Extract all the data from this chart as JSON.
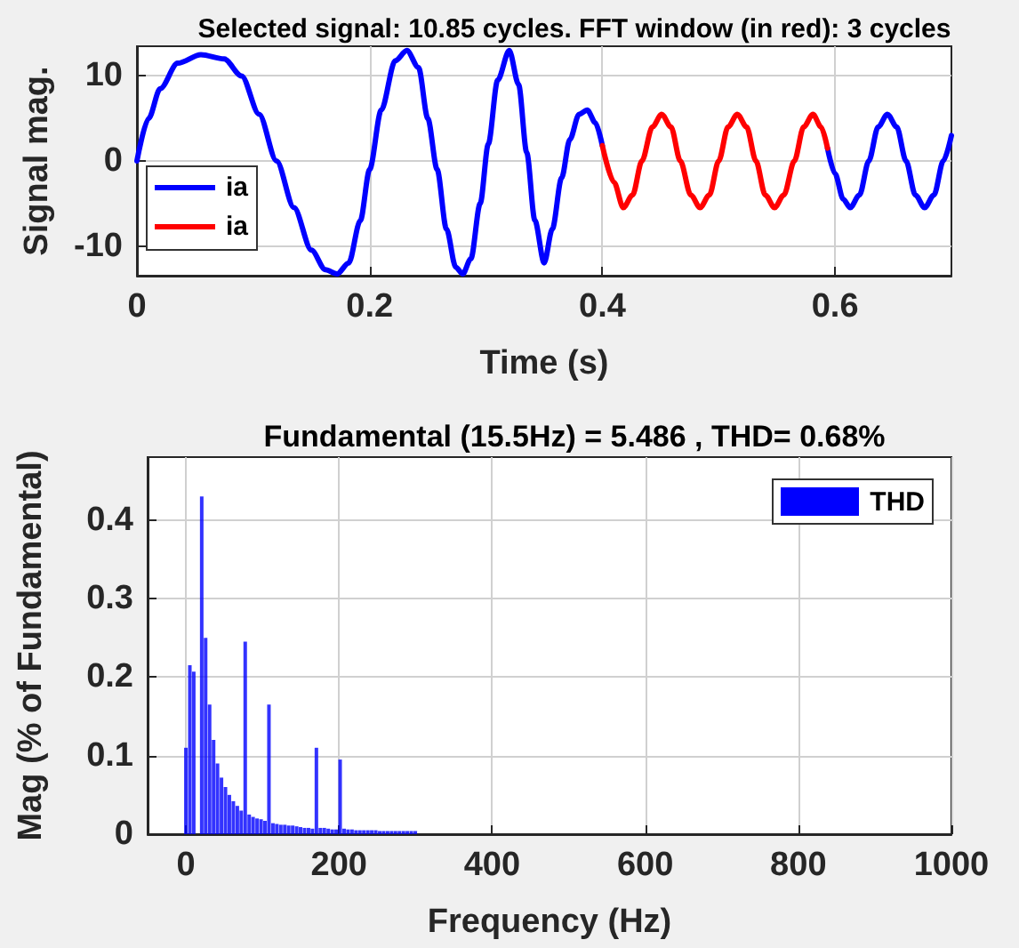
{
  "chart_data": [
    {
      "type": "line",
      "title": "Selected signal: 10.85 cycles. FFT window (in red): 3 cycles",
      "xlabel": "Time (s)",
      "ylabel": "Signal mag.",
      "xlim": [
        0,
        0.7
      ],
      "xticks": [
        0,
        0.2,
        0.4,
        0.6
      ],
      "ylim": [
        -13.5,
        13.5
      ],
      "yticks": [
        -10,
        0,
        10
      ],
      "grid": true,
      "legend": "left",
      "marker": "none",
      "line_style": "solid",
      "series": [
        {
          "name": "ia",
          "color": "#0000ff",
          "x": [
            0,
            0.01,
            0.02,
            0.035,
            0.055,
            0.075,
            0.09,
            0.105,
            0.12,
            0.135,
            0.15,
            0.162,
            0.172,
            0.182,
            0.192,
            0.2,
            0.21,
            0.222,
            0.232,
            0.242,
            0.25,
            0.258,
            0.266,
            0.274,
            0.28,
            0.287,
            0.295,
            0.302,
            0.31,
            0.32,
            0.328,
            0.335,
            0.342,
            0.35,
            0.357,
            0.365,
            0.372,
            0.38,
            0.387,
            0.394,
            0.4,
            0.5,
            0.5935,
            0.6,
            0.607,
            0.613,
            0.621,
            0.629,
            0.637,
            0.645,
            0.653,
            0.661,
            0.669,
            0.677,
            0.685,
            0.693,
            0.7
          ],
          "values": [
            0,
            5,
            8.5,
            11.5,
            12.5,
            12,
            10,
            5.5,
            0,
            -5.5,
            -10.5,
            -12.8,
            -13.3,
            -12,
            -7,
            -1,
            6,
            11.8,
            13,
            11,
            5,
            -1,
            -8,
            -12.5,
            -13.3,
            -11.5,
            -5,
            2,
            9.5,
            13,
            9,
            1,
            -7,
            -12,
            -8,
            -2,
            2.5,
            5.5,
            6,
            4.5,
            1.8,
            null,
            1.5,
            -1.5,
            -4.5,
            -5.5,
            -4,
            0,
            4,
            5.5,
            4,
            0,
            -4,
            -5.5,
            -4,
            0,
            3
          ]
        },
        {
          "name": "ia",
          "color": "#ff0000",
          "x": [
            0.4,
            0.41,
            0.418,
            0.426,
            0.434,
            0.443,
            0.451,
            0.459,
            0.467,
            0.476,
            0.484,
            0.492,
            0.5,
            0.508,
            0.516,
            0.524,
            0.532,
            0.54,
            0.548,
            0.556,
            0.565,
            0.573,
            0.581,
            0.588,
            0.5935
          ],
          "values": [
            1.8,
            -2.5,
            -5.5,
            -4,
            0,
            4,
            5.5,
            4,
            0,
            -4,
            -5.5,
            -4,
            0,
            4,
            5.5,
            4,
            0,
            -4,
            -5.5,
            -4,
            0,
            4,
            5.5,
            4,
            1.5
          ]
        }
      ]
    },
    {
      "type": "bar",
      "title": "Fundamental (15.5Hz) = 5.486 , THD= 0.68%",
      "xlabel": "Frequency (Hz)",
      "ylabel": "Mag (% of Fundamental)",
      "xlim": [
        -50,
        1000
      ],
      "xticks": [
        0,
        200,
        400,
        600,
        800,
        1000
      ],
      "ylim": [
        0,
        0.48
      ],
      "yticks": [
        0,
        0.1,
        0.2,
        0.3,
        0.4
      ],
      "grid": true,
      "legend": "top right",
      "series": [
        {
          "name": "THD",
          "color": "#0000ff",
          "x": [
            0,
            5.2,
            10.3,
            15.5,
            20.7,
            25.8,
            31,
            36.2,
            41.3,
            46.5,
            51.7,
            56.8,
            62,
            67.2,
            72.3,
            77.5,
            82.7,
            87.8,
            93,
            98.2,
            103.3,
            108.5,
            113.7,
            118.8,
            124,
            129.2,
            134.3,
            139.5,
            144.7,
            149.8,
            155,
            160.2,
            165.3,
            170.5,
            175.7,
            180.8,
            186,
            191.2,
            196.3,
            201.5,
            206.7,
            211.8,
            217,
            222.2,
            227.3,
            232.5,
            237.7,
            242.8,
            248,
            253.2,
            258.3,
            263.5,
            268.7,
            273.8,
            279,
            284.2,
            289.3,
            294.5,
            299.7
          ],
          "values": [
            0.11,
            0.215,
            0.207,
            null,
            0.43,
            0.25,
            0.165,
            0.12,
            0.09,
            0.072,
            0.06,
            0.05,
            0.042,
            0.036,
            0.03,
            0.245,
            0.025,
            0.022,
            0.02,
            0.019,
            0.017,
            0.165,
            0.014,
            0.013,
            0.012,
            0.012,
            0.011,
            0.011,
            0.01,
            0.009,
            0.008,
            0.008,
            0.007,
            0.11,
            0.008,
            0.008,
            0.007,
            0.006,
            0.006,
            0.095,
            0.007,
            0.006,
            0.006,
            0.005,
            0.005,
            0.005,
            0.005,
            0.005,
            0.005,
            0.004,
            0.004,
            0.004,
            0.004,
            0.004,
            0.004,
            0.004,
            0.004,
            0.004,
            0.004
          ]
        }
      ]
    }
  ]
}
